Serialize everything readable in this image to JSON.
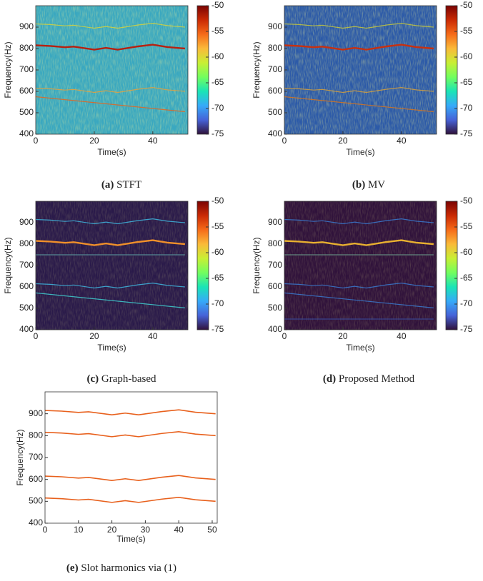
{
  "chart_data": [
    {
      "type": "spectrogram",
      "xlabel": "Time(s)",
      "ylabel": "Frequency(Hz)",
      "caption_label": "(a)",
      "caption": "STFT",
      "xlim": [
        0,
        52
      ],
      "xticks": [
        0,
        20,
        40
      ],
      "ylim": [
        400,
        1000
      ],
      "yticks": [
        400,
        500,
        600,
        700,
        800,
        900
      ],
      "clim": [
        -75,
        -50
      ],
      "cticks": [
        -75,
        -70,
        -65,
        -60,
        -55,
        -50
      ],
      "background": "#3aa8c0",
      "colormap": [
        "#30123b",
        "#4662d7",
        "#36aaf9",
        "#1ae4b6",
        "#72fe5e",
        "#c8ef34",
        "#faba39",
        "#f66b19",
        "#ca2a04",
        "#7a0403"
      ],
      "series": [
        {
          "color": "#b8200f",
          "x": [
            0,
            5,
            10,
            13,
            20,
            24,
            28,
            35,
            40,
            45,
            51
          ],
          "values": [
            815,
            812,
            806,
            809,
            795,
            803,
            795,
            810,
            818,
            807,
            800
          ]
        },
        {
          "color": "#d8d23a",
          "x": [
            0,
            5,
            10,
            13,
            20,
            24,
            28,
            35,
            40,
            45,
            51
          ],
          "values": [
            915,
            912,
            906,
            909,
            895,
            903,
            895,
            910,
            918,
            907,
            900
          ]
        },
        {
          "color": "#e8a03a",
          "x": [
            0,
            5,
            10,
            13,
            20,
            24,
            28,
            35,
            40,
            45,
            51
          ],
          "values": [
            615,
            612,
            606,
            609,
            595,
            603,
            595,
            610,
            618,
            607,
            600
          ]
        },
        {
          "color": "#e8641c",
          "x": [
            0,
            51
          ],
          "values": [
            575,
            505
          ]
        }
      ]
    },
    {
      "type": "spectrogram",
      "xlabel": "Time(s)",
      "ylabel": "Frequency(Hz)",
      "caption_label": "(b)",
      "caption": "MV",
      "xlim": [
        0,
        52
      ],
      "xticks": [
        0,
        20,
        40
      ],
      "ylim": [
        400,
        1000
      ],
      "yticks": [
        400,
        500,
        600,
        700,
        800,
        900
      ],
      "clim": [
        -75,
        -50
      ],
      "cticks": [
        -75,
        -70,
        -65,
        -60,
        -55,
        -50
      ],
      "background": "#2c5aa8",
      "colormap": [
        "#30123b",
        "#4662d7",
        "#36aaf9",
        "#1ae4b6",
        "#72fe5e",
        "#c8ef34",
        "#faba39",
        "#f66b19",
        "#ca2a04",
        "#7a0403"
      ],
      "series": [
        {
          "color": "#c8300f",
          "x": [
            0,
            5,
            10,
            13,
            20,
            24,
            28,
            35,
            40,
            45,
            51
          ],
          "values": [
            815,
            812,
            806,
            809,
            795,
            803,
            795,
            810,
            818,
            807,
            800
          ]
        },
        {
          "color": "#c8c83a",
          "x": [
            0,
            5,
            10,
            13,
            20,
            24,
            28,
            35,
            40,
            45,
            51
          ],
          "values": [
            915,
            912,
            906,
            909,
            895,
            903,
            895,
            910,
            918,
            907,
            900
          ]
        },
        {
          "color": "#d8a03a",
          "x": [
            0,
            5,
            10,
            13,
            20,
            24,
            28,
            35,
            40,
            45,
            51
          ],
          "values": [
            615,
            612,
            606,
            609,
            595,
            603,
            595,
            610,
            618,
            607,
            600
          ]
        },
        {
          "color": "#d8741c",
          "x": [
            0,
            51
          ],
          "values": [
            575,
            505
          ]
        }
      ]
    },
    {
      "type": "spectrogram",
      "xlabel": "Time(s)",
      "ylabel": "Frequency(Hz)",
      "caption_label": "(c)",
      "caption": "Graph-based",
      "xlim": [
        0,
        52
      ],
      "xticks": [
        0,
        20,
        40
      ],
      "ylim": [
        400,
        1000
      ],
      "yticks": [
        400,
        500,
        600,
        700,
        800,
        900
      ],
      "clim": [
        -75,
        -50
      ],
      "cticks": [
        -75,
        -70,
        -65,
        -60,
        -55,
        -50
      ],
      "background": "#2a1a4a",
      "colormap": [
        "#30123b",
        "#4662d7",
        "#36aaf9",
        "#1ae4b6",
        "#72fe5e",
        "#c8ef34",
        "#faba39",
        "#f66b19",
        "#ca2a04",
        "#7a0403"
      ],
      "series": [
        {
          "color": "#f0902a",
          "x": [
            0,
            5,
            10,
            13,
            20,
            24,
            28,
            35,
            40,
            45,
            51
          ],
          "values": [
            815,
            812,
            806,
            809,
            795,
            803,
            795,
            810,
            818,
            807,
            800
          ]
        },
        {
          "color": "#3fb8e0",
          "x": [
            0,
            5,
            10,
            13,
            20,
            24,
            28,
            35,
            40,
            45,
            51
          ],
          "values": [
            915,
            912,
            906,
            909,
            895,
            903,
            895,
            910,
            918,
            907,
            900
          ]
        },
        {
          "color": "#5a9aa0",
          "x": [
            0,
            51
          ],
          "values": [
            750,
            750
          ]
        },
        {
          "color": "#3fb8e0",
          "x": [
            0,
            5,
            10,
            13,
            20,
            24,
            28,
            35,
            40,
            45,
            51
          ],
          "values": [
            615,
            612,
            606,
            609,
            595,
            603,
            595,
            610,
            618,
            607,
            600
          ]
        },
        {
          "color": "#3fd0d0",
          "x": [
            0,
            51
          ],
          "values": [
            572,
            502
          ]
        }
      ]
    },
    {
      "type": "spectrogram",
      "xlabel": "Time(s)",
      "ylabel": "Frequency(Hz)",
      "caption_label": "(d)",
      "caption": "Proposed Method",
      "xlim": [
        0,
        52
      ],
      "xticks": [
        0,
        20,
        40
      ],
      "ylim": [
        400,
        1000
      ],
      "yticks": [
        400,
        500,
        600,
        700,
        800,
        900
      ],
      "clim": [
        -75,
        -50
      ],
      "cticks": [
        -75,
        -70,
        -65,
        -60,
        -55,
        -50
      ],
      "background": "#30123b",
      "colormap": [
        "#30123b",
        "#4662d7",
        "#36aaf9",
        "#1ae4b6",
        "#72fe5e",
        "#c8ef34",
        "#faba39",
        "#f66b19",
        "#ca2a04",
        "#7a0403"
      ],
      "series": [
        {
          "color": "#e8b030",
          "x": [
            0,
            5,
            10,
            13,
            20,
            24,
            28,
            35,
            40,
            45,
            51
          ],
          "values": [
            815,
            812,
            806,
            809,
            795,
            803,
            795,
            810,
            818,
            807,
            800
          ]
        },
        {
          "color": "#3a7ad0",
          "x": [
            0,
            5,
            10,
            13,
            20,
            24,
            28,
            35,
            40,
            45,
            51
          ],
          "values": [
            915,
            912,
            906,
            909,
            895,
            903,
            895,
            910,
            918,
            907,
            900
          ]
        },
        {
          "color": "#6a9a8a",
          "x": [
            0,
            51
          ],
          "values": [
            750,
            750
          ]
        },
        {
          "color": "#3a7ad0",
          "x": [
            0,
            5,
            10,
            13,
            20,
            24,
            28,
            35,
            40,
            45,
            51
          ],
          "values": [
            615,
            612,
            606,
            609,
            595,
            603,
            595,
            610,
            618,
            607,
            600
          ]
        },
        {
          "color": "#3a7ad0",
          "x": [
            0,
            51
          ],
          "values": [
            572,
            502
          ]
        },
        {
          "color": "#3a4a9a",
          "x": [
            0,
            51
          ],
          "values": [
            450,
            450
          ]
        }
      ]
    },
    {
      "type": "line",
      "xlabel": "Time(s)",
      "ylabel": "Frequency(Hz)",
      "caption_label": "(e)",
      "caption": "Slot harmonics via (1)",
      "xlim": [
        0,
        51.5
      ],
      "xticks": [
        0,
        10,
        20,
        30,
        40,
        50
      ],
      "ylim": [
        400,
        1000
      ],
      "yticks": [
        400,
        500,
        600,
        700,
        800,
        900
      ],
      "series": [
        {
          "color": "#e8601c",
          "x": [
            0,
            5,
            10,
            13,
            20,
            24,
            28,
            35,
            40,
            45,
            51
          ],
          "values": [
            915,
            912,
            906,
            909,
            895,
            903,
            895,
            910,
            918,
            907,
            900
          ]
        },
        {
          "color": "#e8601c",
          "x": [
            0,
            5,
            10,
            13,
            20,
            24,
            28,
            35,
            40,
            45,
            51
          ],
          "values": [
            815,
            812,
            806,
            809,
            795,
            803,
            795,
            810,
            818,
            807,
            800
          ]
        },
        {
          "color": "#e8601c",
          "x": [
            0,
            5,
            10,
            13,
            20,
            24,
            28,
            35,
            40,
            45,
            51
          ],
          "values": [
            615,
            612,
            606,
            609,
            595,
            603,
            595,
            610,
            618,
            607,
            600
          ]
        },
        {
          "color": "#e8601c",
          "x": [
            0,
            5,
            10,
            13,
            20,
            24,
            28,
            35,
            40,
            45,
            51
          ],
          "values": [
            515,
            512,
            506,
            509,
            495,
            503,
            495,
            510,
            518,
            507,
            500
          ]
        }
      ]
    }
  ]
}
